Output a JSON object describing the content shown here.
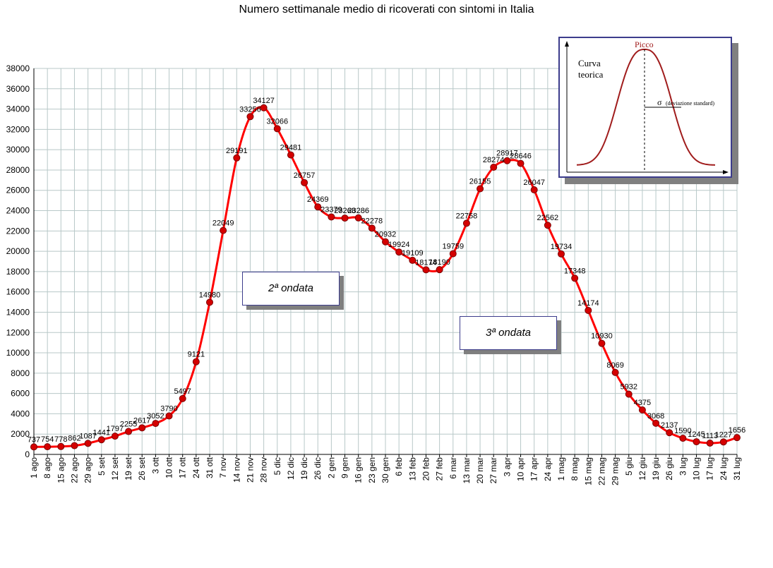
{
  "chart_data": {
    "type": "line",
    "title": "Numero settimanale medio di ricoverati con sintomi in Italia",
    "xlabel": "",
    "ylabel": "",
    "ylim": [
      0,
      38000
    ],
    "ytick_step": 2000,
    "grid": true,
    "categories": [
      "1 ago",
      "8 ago",
      "15 ago",
      "22 ago",
      "29 ago",
      "5 set",
      "12 set",
      "19 set",
      "26 set",
      "3 ott",
      "10 ott",
      "17 ott",
      "24 ott",
      "31 ott",
      "7 nov",
      "14 nov",
      "21 nov",
      "28 nov",
      "5 dic",
      "12 dic",
      "19 dic",
      "26 dic",
      "2 gen",
      "9 gen",
      "16 gen",
      "23 gen",
      "30 gen",
      "6 feb",
      "13 feb",
      "20 feb",
      "27 feb",
      "6 mar",
      "13 mar",
      "20 mar",
      "27 mar",
      "3 apr",
      "10 apr",
      "17 apr",
      "24 apr",
      "1 mag",
      "8 mag",
      "15 mag",
      "22 mag",
      "29 mag",
      "5 giu",
      "12 giu",
      "19 giu",
      "26 giu",
      "3 lug",
      "10 lug",
      "17 lug",
      "24 lug",
      "31 lug"
    ],
    "series": [
      {
        "color": "#ff0000",
        "marker_color": "#d40000",
        "values": [
          737,
          754,
          778,
          862,
          1087,
          1441,
          1797,
          2255,
          2617,
          3052,
          3790,
          5497,
          9121,
          14980,
          22049,
          29191,
          33256,
          34127,
          32066,
          29481,
          26757,
          24369,
          23379,
          23268,
          23286,
          22278,
          20932,
          19924,
          19109,
          18174,
          18190,
          19759,
          22758,
          26155,
          28274,
          28917,
          28646,
          26047,
          22562,
          19734,
          17348,
          14174,
          10930,
          8069,
          5932,
          4375,
          3068,
          2137,
          1590,
          1245,
          1113,
          1227,
          1656
        ]
      }
    ]
  },
  "annotations": {
    "wave2_label": "2ª ondata",
    "wave3_label": "3ª ondata"
  },
  "inset": {
    "curve_label_line1": "Curva",
    "curve_label_line2": "teorica",
    "peak_label": "Picco",
    "sigma_symbol": "σ",
    "sigma_label": "(deviazione standard)",
    "curve_color": "#a01c1c"
  }
}
